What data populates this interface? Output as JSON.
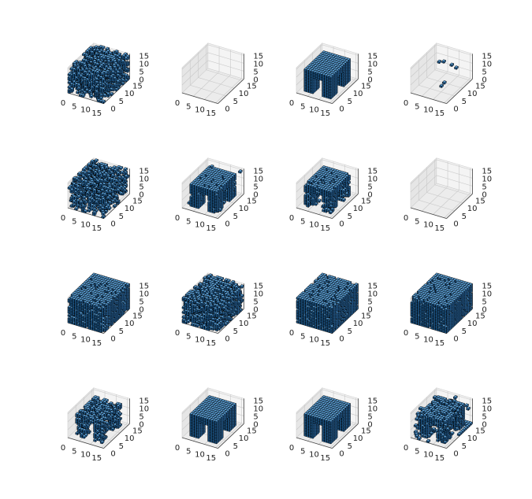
{
  "chart_data": {
    "type": "voxel-3d-grid",
    "rows": 4,
    "cols": 4,
    "axis_range": [
      0,
      16
    ],
    "x_ticks": [
      "0",
      "5",
      "10",
      "15"
    ],
    "y_ticks": [
      "0",
      "5",
      "10",
      "15"
    ],
    "z_ticks": [
      "0",
      "5",
      "10",
      "15"
    ],
    "grid": true,
    "pane_color": "#f2f2f2",
    "pane_shades": [
      "#f4f4f4",
      "#ececec",
      "#e6e6e6"
    ],
    "voxel_face_colors": {
      "top": "#5a9fd6",
      "right": "#2f76b7",
      "left": "#1f5f96"
    },
    "voxel_edge_color": "#000000",
    "panels": [
      {
        "shape": "noise",
        "density": 0.28,
        "seed": 11
      },
      {
        "shape": "empty"
      },
      {
        "shape": "table"
      },
      {
        "shape": "points",
        "points": [
          [
            4,
            11,
            10
          ],
          [
            6,
            11,
            11
          ],
          [
            11,
            9,
            13
          ],
          [
            13,
            9,
            12
          ],
          [
            12,
            3,
            8
          ],
          [
            10,
            4,
            4
          ]
        ]
      },
      {
        "shape": "noise",
        "density": 0.18,
        "seed": 23
      },
      {
        "shape": "table_noisy",
        "extra": [
          [
            1,
            2,
            1
          ],
          [
            2,
            4,
            4
          ],
          [
            15,
            14,
            15
          ],
          [
            3,
            13,
            14
          ],
          [
            14,
            3,
            1
          ],
          [
            12,
            8,
            0
          ]
        ],
        "seed": 5
      },
      {
        "shape": "table_partial",
        "seed": 8,
        "extra": [
          [
            2,
            2,
            1
          ],
          [
            5,
            6,
            0
          ],
          [
            9,
            3,
            1
          ]
        ]
      },
      {
        "shape": "empty"
      },
      {
        "shape": "solid_noisy",
        "density": 0.8,
        "seed": 31
      },
      {
        "shape": "noise",
        "density": 0.42,
        "seed": 44
      },
      {
        "shape": "solid_noisy",
        "density": 0.82,
        "seed": 52,
        "base_plate": true
      },
      {
        "shape": "solid_noisy",
        "density": 0.88,
        "seed": 61
      },
      {
        "shape": "sparse_table",
        "seed": 71
      },
      {
        "shape": "table"
      },
      {
        "shape": "table"
      },
      {
        "shape": "table_noisy_heavy",
        "seed": 83
      }
    ]
  }
}
